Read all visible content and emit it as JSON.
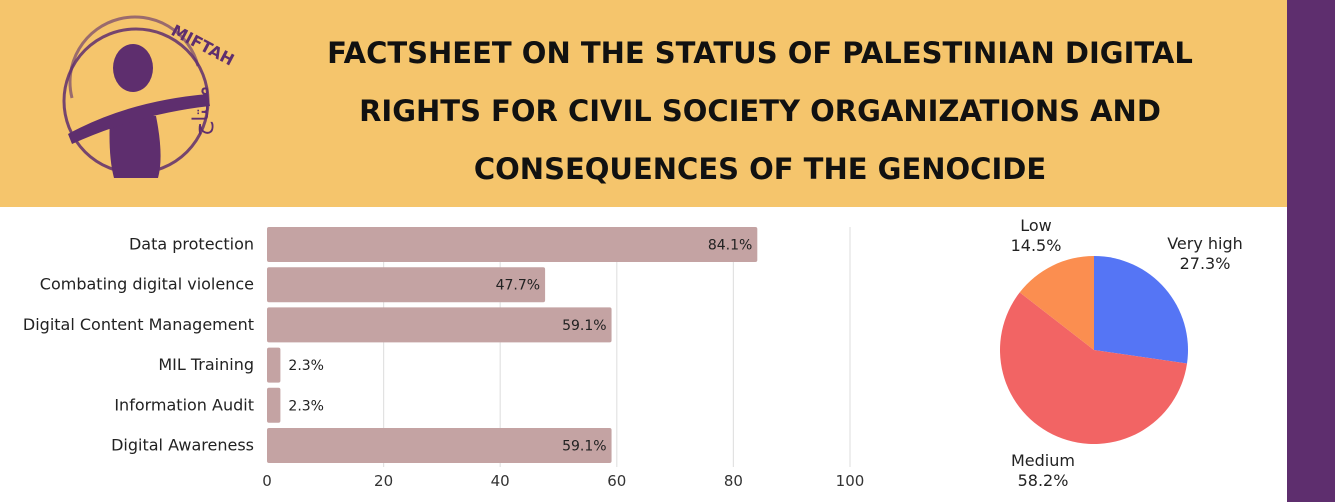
{
  "header": {
    "logo_text": "MIFTAH",
    "logo_arabic": "مفتاح",
    "title_lines": [
      "FACTSHEET ON THE STATUS OF PALESTINIAN DIGITAL",
      "RIGHTS FOR CIVIL SOCIETY ORGANIZATIONS AND",
      "CONSEQUENCES OF THE GENOCIDE"
    ]
  },
  "colors": {
    "header_bg": "#f5c56c",
    "accent_purple": "#5e2e6e",
    "bar_fill": "#c4a3a3",
    "pie_very_high": "#5575f5",
    "pie_medium": "#f26464",
    "pie_low": "#fb8e50"
  },
  "chart_data": [
    {
      "type": "bar",
      "orientation": "horizontal",
      "categories": [
        "Data protection",
        "Combating digital violence",
        "Digital Content Management",
        "MIL Training",
        "Information Audit",
        "Digital Awareness"
      ],
      "values": [
        84.1,
        47.7,
        59.1,
        2.3,
        2.3,
        59.1
      ],
      "data_labels": [
        "84.1%",
        "47.7%",
        "59.1%",
        "2.3%",
        "2.3%",
        "59.1%"
      ],
      "xlim": [
        0,
        100
      ],
      "xticks": [
        0,
        20,
        40,
        60,
        80,
        100
      ],
      "grid": true
    },
    {
      "type": "pie",
      "slices": [
        {
          "label": "Very high",
          "value": 27.3,
          "display": "27.3%",
          "color": "#5575f5"
        },
        {
          "label": "Medium",
          "value": 58.2,
          "display": "58.2%",
          "color": "#f26464"
        },
        {
          "label": "Low",
          "value": 14.5,
          "display": "14.5%",
          "color": "#fb8e50"
        }
      ]
    }
  ]
}
